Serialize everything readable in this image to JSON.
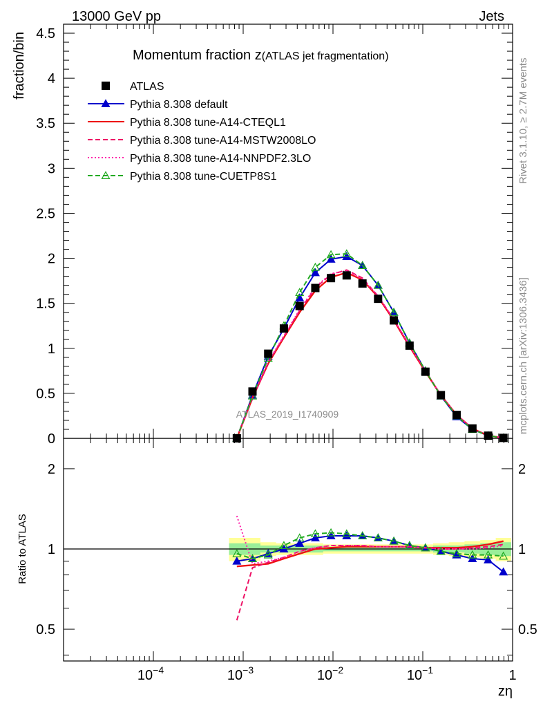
{
  "header": {
    "left_label": "13000 GeV pp",
    "right_label": "Jets"
  },
  "side_labels": {
    "rivet": "Rivet 3.1.10, ≥ 2.7M events",
    "mcplots": "mcplots.cern.ch [arXiv:1306.3436]"
  },
  "watermark": "ATLAS_2019_I1740909",
  "chart_data": [
    {
      "panel": "main",
      "type": "line",
      "title_main": "Momentum fraction z",
      "title_sub": "(ATLAS jet fragmentation)",
      "ylabel": "fraction/bin",
      "xscale": "log",
      "xlim": [
        1e-05,
        1
      ],
      "ylim": [
        0,
        4.6
      ],
      "yticks": [
        0,
        0.5,
        1,
        1.5,
        2,
        2.5,
        3,
        3.5,
        4,
        4.5
      ],
      "legend_position": "top-left",
      "x": [
        0.00085,
        0.00127,
        0.0019,
        0.00284,
        0.00425,
        0.00636,
        0.0095,
        0.0142,
        0.0213,
        0.0318,
        0.0476,
        0.0712,
        0.107,
        0.159,
        0.238,
        0.357,
        0.534,
        0.79
      ],
      "series": [
        {
          "name": "ATLAS",
          "color": "#000000",
          "style": "square-marker",
          "values": [
            0.0,
            0.52,
            0.94,
            1.22,
            1.47,
            1.67,
            1.78,
            1.81,
            1.72,
            1.55,
            1.31,
            1.03,
            0.74,
            0.48,
            0.26,
            0.11,
            0.03,
            0.005
          ]
        },
        {
          "name": "Pythia 8.308 default",
          "color": "#0000cc",
          "style": "solid-triangle",
          "values": [
            0.0,
            0.48,
            0.91,
            1.22,
            1.56,
            1.84,
            1.99,
            2.02,
            1.92,
            1.7,
            1.4,
            1.06,
            0.75,
            0.47,
            0.24,
            0.1,
            0.03,
            0.004
          ]
        },
        {
          "name": "Pythia 8.308 tune-A14-CTEQL1",
          "color": "#ee1111",
          "style": "solid",
          "values": [
            0.0,
            0.45,
            0.83,
            1.12,
            1.4,
            1.64,
            1.79,
            1.84,
            1.76,
            1.57,
            1.31,
            1.02,
            0.74,
            0.48,
            0.26,
            0.11,
            0.03,
            0.005
          ]
        },
        {
          "name": "Pythia 8.308 tune-A14-MSTW2008LO",
          "color": "#ee1166",
          "style": "dashed",
          "values": [
            0.0,
            0.44,
            0.84,
            1.13,
            1.42,
            1.67,
            1.82,
            1.87,
            1.78,
            1.58,
            1.32,
            1.03,
            0.75,
            0.48,
            0.26,
            0.11,
            0.03,
            0.005
          ]
        },
        {
          "name": "Pythia 8.308 tune-A14-NNPDF2.3LO",
          "color": "#ff22aa",
          "style": "dotted",
          "values": [
            0.0,
            0.46,
            0.85,
            1.14,
            1.43,
            1.68,
            1.83,
            1.86,
            1.77,
            1.58,
            1.32,
            1.03,
            0.75,
            0.48,
            0.26,
            0.11,
            0.03,
            0.005
          ]
        },
        {
          "name": "Pythia 8.308 tune-CUETP8S1",
          "color": "#22aa22",
          "style": "dashed-open-triangle",
          "values": [
            0.0,
            0.47,
            0.89,
            1.25,
            1.62,
            1.9,
            2.04,
            2.05,
            1.92,
            1.7,
            1.4,
            1.06,
            0.75,
            0.47,
            0.25,
            0.1,
            0.03,
            0.004
          ]
        }
      ]
    },
    {
      "panel": "ratio",
      "type": "line",
      "ylabel": "Ratio to ATLAS",
      "xlabel": "zη",
      "xscale": "log",
      "yscale": "log",
      "xlim": [
        1e-05,
        1
      ],
      "ylim": [
        0.38,
        2.6
      ],
      "yticks": [
        0.5,
        1,
        2
      ],
      "xticks": [
        0.0001,
        0.001,
        0.01,
        0.1,
        1
      ],
      "xtick_labels": [
        "10",
        "10",
        "10",
        "10",
        "1"
      ],
      "xtick_exponents": [
        "−4",
        "−3",
        "−2",
        "−1",
        ""
      ],
      "x": [
        0.00085,
        0.00127,
        0.0019,
        0.00284,
        0.00425,
        0.00636,
        0.0095,
        0.0142,
        0.0213,
        0.0318,
        0.0476,
        0.0712,
        0.107,
        0.159,
        0.238,
        0.357,
        0.534,
        0.79
      ],
      "band_inner": [
        0.05,
        0.05,
        0.03,
        0.03,
        0.03,
        0.03,
        0.02,
        0.02,
        0.02,
        0.02,
        0.02,
        0.02,
        0.02,
        0.03,
        0.03,
        0.04,
        0.05,
        0.06
      ],
      "band_outer": [
        0.1,
        0.1,
        0.06,
        0.05,
        0.05,
        0.05,
        0.04,
        0.04,
        0.04,
        0.04,
        0.04,
        0.04,
        0.04,
        0.05,
        0.06,
        0.07,
        0.08,
        0.1
      ],
      "series": [
        {
          "name": "Pythia 8.308 default",
          "color": "#0000cc",
          "values": [
            0.9,
            0.92,
            0.96,
            1.0,
            1.05,
            1.1,
            1.12,
            1.12,
            1.12,
            1.1,
            1.07,
            1.03,
            1.01,
            0.98,
            0.95,
            0.92,
            0.91,
            0.82
          ]
        },
        {
          "name": "Pythia 8.308 tune-A14-CTEQL1",
          "color": "#ee1111",
          "values": [
            0.86,
            0.87,
            0.88,
            0.92,
            0.96,
            1.0,
            1.01,
            1.02,
            1.02,
            1.02,
            1.02,
            1.02,
            1.01,
            1.01,
            1.01,
            1.02,
            1.04,
            1.07
          ]
        },
        {
          "name": "Pythia 8.308 tune-A14-MSTW2008LO",
          "color": "#ee1166",
          "values": [
            0.54,
            0.85,
            0.89,
            0.93,
            0.98,
            1.01,
            1.03,
            1.03,
            1.03,
            1.02,
            1.02,
            1.02,
            1.01,
            1.0,
            1.0,
            1.01,
            1.02,
            1.04
          ]
        },
        {
          "name": "Pythia 8.308 tune-A14-NNPDF2.3LO",
          "color": "#ff22aa",
          "values": [
            1.33,
            0.88,
            0.9,
            0.93,
            0.98,
            1.01,
            1.03,
            1.03,
            1.03,
            1.02,
            1.02,
            1.02,
            1.01,
            1.0,
            1.0,
            1.0,
            1.01,
            1.03
          ]
        },
        {
          "name": "Pythia 8.308 tune-CUETP8S1",
          "color": "#22aa22",
          "values": [
            0.96,
            0.92,
            0.95,
            1.03,
            1.1,
            1.14,
            1.15,
            1.14,
            1.12,
            1.1,
            1.07,
            1.03,
            1.01,
            0.98,
            0.96,
            0.95,
            0.95,
            0.94
          ]
        }
      ]
    }
  ]
}
